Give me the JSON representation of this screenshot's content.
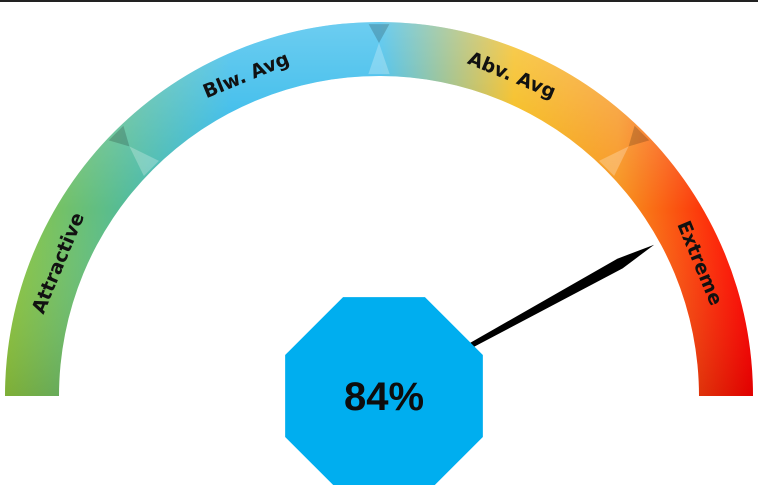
{
  "chart_data": {
    "type": "gauge",
    "value": 84,
    "value_display": "84%",
    "range": [
      0,
      100
    ],
    "bands": [
      {
        "label": "Attractive",
        "from": 0,
        "to": 25
      },
      {
        "label": "Blw. Avg",
        "from": 25,
        "to": 50
      },
      {
        "label": "Abv. Avg",
        "from": 50,
        "to": 75
      },
      {
        "label": "Extreme",
        "from": 75,
        "to": 100
      }
    ],
    "gradient_colors": [
      "#8ec63f",
      "#1eb2e8",
      "#1eb2e8",
      "#f4b400",
      "#f7941d",
      "#ff0000"
    ],
    "value_box_color": "#00aeef",
    "needle_color": "#000000"
  }
}
